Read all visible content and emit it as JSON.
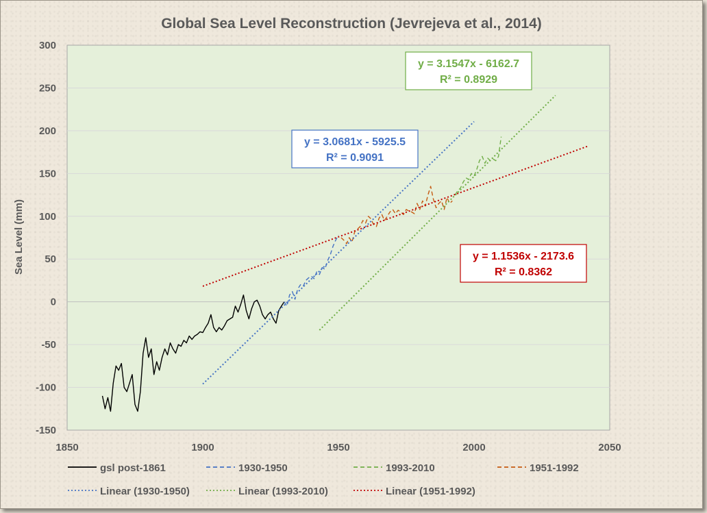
{
  "chart_data": {
    "type": "line",
    "title": "Global Sea Level Reconstruction (Jevrejeva et al., 2014)",
    "xlabel": "",
    "ylabel": "Sea Level (mm)",
    "xlim": [
      1850,
      2050
    ],
    "ylim": [
      -150,
      300
    ],
    "xticks": [
      1850,
      1900,
      1950,
      2000,
      2050
    ],
    "yticks": [
      300,
      250,
      200,
      150,
      100,
      50,
      0,
      -50,
      -100,
      -150
    ],
    "grid": "horizontal",
    "plot_background": "#e5f0da",
    "legend": "bottom",
    "series": [
      {
        "name": "gsl post-1861",
        "color": "#000000",
        "style": "solid",
        "x": [
          1863,
          1864,
          1865,
          1866,
          1867,
          1868,
          1869,
          1870,
          1871,
          1872,
          1873,
          1874,
          1875,
          1876,
          1877,
          1878,
          1879,
          1880,
          1881,
          1882,
          1883,
          1884,
          1885,
          1886,
          1887,
          1888,
          1889,
          1890,
          1891,
          1892,
          1893,
          1894,
          1895,
          1896,
          1897,
          1898,
          1899,
          1900,
          1901,
          1902,
          1903,
          1904,
          1905,
          1906,
          1907,
          1908,
          1909,
          1910,
          1911,
          1912,
          1913,
          1914,
          1915,
          1916,
          1917,
          1918,
          1919,
          1920,
          1921,
          1922,
          1923,
          1924,
          1925,
          1926,
          1927,
          1928,
          1929,
          1930
        ],
        "y": [
          -110,
          -125,
          -112,
          -128,
          -95,
          -75,
          -80,
          -72,
          -100,
          -105,
          -95,
          -85,
          -120,
          -128,
          -105,
          -60,
          -42,
          -65,
          -55,
          -85,
          -70,
          -80,
          -65,
          -55,
          -62,
          -48,
          -55,
          -60,
          -50,
          -52,
          -45,
          -48,
          -40,
          -44,
          -40,
          -38,
          -35,
          -36,
          -30,
          -25,
          -15,
          -30,
          -35,
          -30,
          -33,
          -28,
          -22,
          -20,
          -18,
          -5,
          -12,
          -3,
          8,
          -10,
          -20,
          -8,
          0,
          2,
          -5,
          -15,
          -20,
          -15,
          -12,
          -20,
          -25,
          -10,
          -5,
          0
        ]
      },
      {
        "name": "1930-1950",
        "color": "#4472c4",
        "style": "dashed",
        "x": [
          1930,
          1931,
          1932,
          1933,
          1934,
          1935,
          1936,
          1937,
          1938,
          1939,
          1940,
          1941,
          1942,
          1943,
          1944,
          1945,
          1946,
          1947,
          1948,
          1949,
          1950
        ],
        "y": [
          0,
          -5,
          8,
          12,
          3,
          15,
          20,
          18,
          25,
          28,
          30,
          27,
          35,
          32,
          40,
          38,
          48,
          55,
          65,
          72,
          78
        ]
      },
      {
        "name": "1993-2010",
        "color": "#70ad47",
        "style": "dashed",
        "x": [
          1993,
          1994,
          1995,
          1996,
          1997,
          1998,
          1999,
          2000,
          2001,
          2002,
          2003,
          2004,
          2005,
          2006,
          2007,
          2008,
          2009,
          2010
        ],
        "y": [
          125,
          130,
          133,
          140,
          145,
          143,
          150,
          147,
          155,
          165,
          170,
          162,
          168,
          165,
          167,
          165,
          170,
          193
        ]
      },
      {
        "name": "1951-1992",
        "color": "#c55a11",
        "style": "dashed",
        "x": [
          1951,
          1952,
          1953,
          1954,
          1955,
          1956,
          1957,
          1958,
          1959,
          1960,
          1961,
          1962,
          1963,
          1964,
          1965,
          1966,
          1967,
          1968,
          1969,
          1970,
          1971,
          1972,
          1973,
          1974,
          1975,
          1976,
          1977,
          1978,
          1979,
          1980,
          1981,
          1982,
          1983,
          1984,
          1985,
          1986,
          1987,
          1988,
          1989,
          1990,
          1991,
          1992
        ],
        "y": [
          75,
          72,
          68,
          75,
          70,
          82,
          85,
          88,
          95,
          92,
          100,
          97,
          90,
          88,
          98,
          102,
          95,
          100,
          105,
          108,
          103,
          107,
          105,
          102,
          108,
          106,
          105,
          103,
          115,
          108,
          118,
          112,
          125,
          135,
          120,
          110,
          115,
          118,
          108,
          122,
          115,
          118
        ]
      },
      {
        "name": "Linear (1930-1950)",
        "color": "#4472c4",
        "style": "dotted",
        "trend": {
          "slope": 3.0681,
          "intercept": -5925.5,
          "x_range": [
            1900,
            2000
          ]
        }
      },
      {
        "name": "Linear (1993-2010)",
        "color": "#70ad47",
        "style": "dotted",
        "trend": {
          "slope": 3.1547,
          "intercept": -6162.7,
          "x_range": [
            1943,
            2030
          ]
        }
      },
      {
        "name": "Linear (1951-1992)",
        "color": "#c00000",
        "style": "dotted",
        "trend": {
          "slope": 1.1536,
          "intercept": -2173.6,
          "x_range": [
            1900,
            2042
          ]
        }
      }
    ],
    "annotations": [
      {
        "line1": "y = 3.1547x - 6162.7",
        "line2": "R² = 0.8929",
        "color": "#70ad47"
      },
      {
        "line1": "y = 3.0681x - 5925.5",
        "line2": "R² = 0.9091",
        "color": "#4472c4"
      },
      {
        "line1": "y = 1.1536x - 2173.6",
        "line2": "R² = 0.8362",
        "color": "#c00000"
      }
    ]
  }
}
